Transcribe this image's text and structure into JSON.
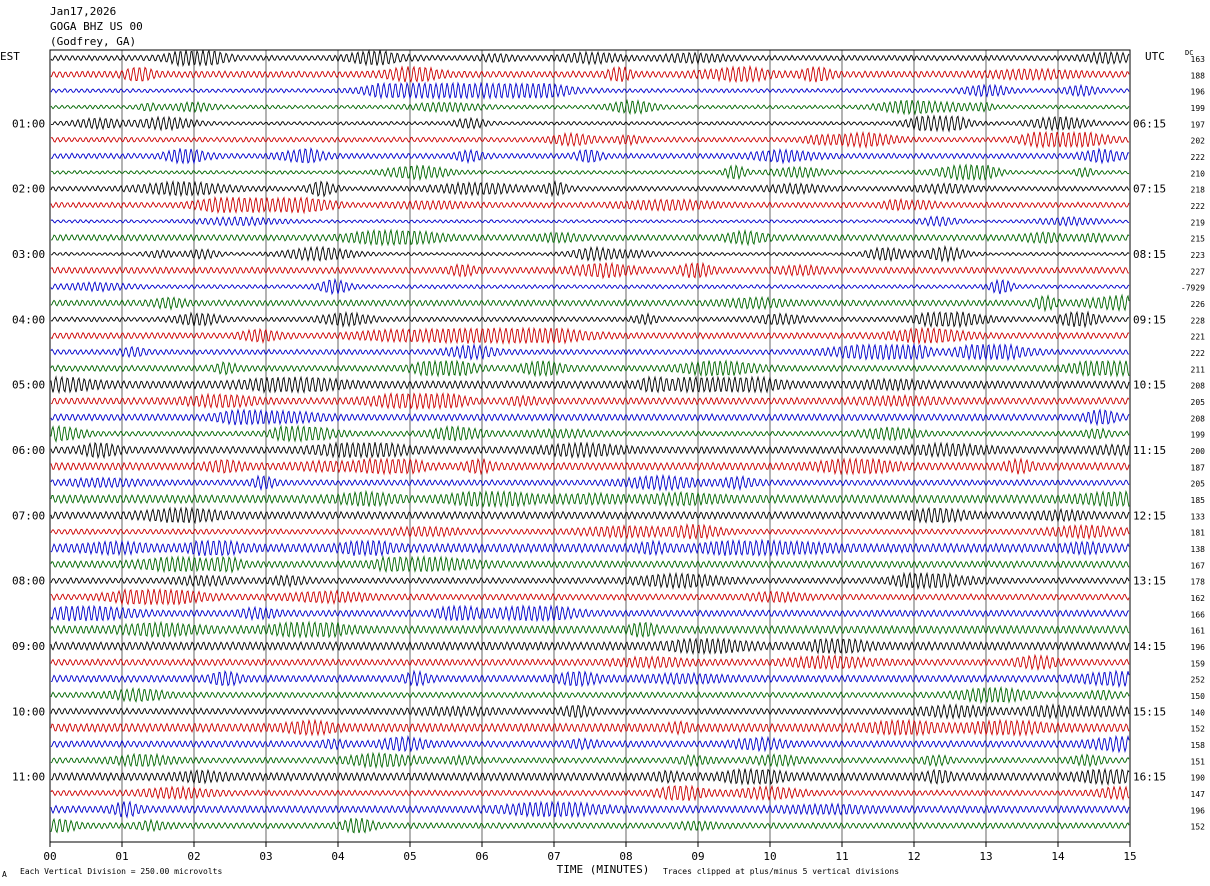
{
  "header": {
    "date": "Jan17,2026",
    "station": "GOGA BHZ US 00",
    "location": "(Godfrey, GA)"
  },
  "left_tz": "EST",
  "right_tz": "UTC",
  "dc_label": "DC",
  "footer": {
    "scale_mark": "A",
    "division_note": "Each Vertical Division =  250.00 microvolts",
    "clip_note": "Traces clipped at plus/minus 5 vertical divisions"
  },
  "chart_data": {
    "type": "line",
    "title": "",
    "xlabel": "TIME (MINUTES)",
    "xlim": [
      0,
      15
    ],
    "x_ticks": [
      "00",
      "01",
      "02",
      "03",
      "04",
      "05",
      "06",
      "07",
      "08",
      "09",
      "10",
      "11",
      "12",
      "13",
      "14",
      "15"
    ],
    "left_hour_labels": [
      "01:00",
      "02:00",
      "03:00",
      "04:00",
      "05:00",
      "06:00",
      "07:00",
      "08:00",
      "09:00",
      "10:00",
      "11:00"
    ],
    "right_hour_labels": [
      "06:15",
      "07:15",
      "08:15",
      "09:15",
      "10:15",
      "11:15",
      "12:15",
      "13:15",
      "14:15",
      "15:15",
      "16:15"
    ],
    "trace_colors": [
      "#000000",
      "#cc0000",
      "#0000cc",
      "#006600"
    ],
    "dc_offsets": [
      "163",
      "188",
      "196",
      "199",
      "197",
      "202",
      "222",
      "210",
      "218",
      "222",
      "219",
      "215",
      "223",
      "227",
      "-7929",
      "226",
      "228",
      "221",
      "222",
      "211",
      "208",
      "205",
      "208",
      "199",
      "200",
      "187",
      "205",
      "185",
      "133",
      "181",
      "138",
      "167",
      "178",
      "162",
      "166",
      "161",
      "196",
      "159",
      "252",
      "150",
      "140",
      "152",
      "158",
      "151",
      "190",
      "147",
      "196",
      "152"
    ],
    "grid": true
  }
}
